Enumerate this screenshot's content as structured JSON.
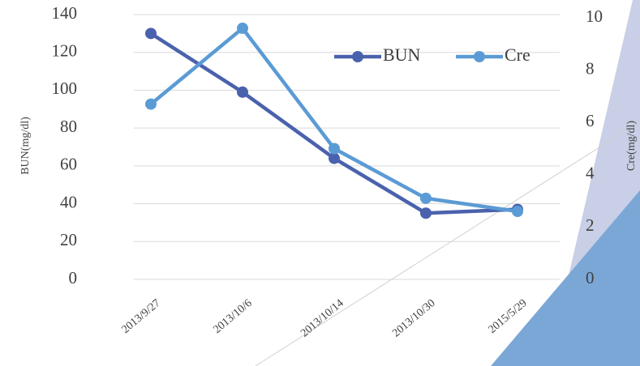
{
  "chart_data": {
    "type": "line",
    "categories": [
      "2013/9/27",
      "2013/10/6",
      "2013/10/14",
      "2013/10/30",
      "2015/5/29"
    ],
    "series": [
      {
        "name": "BUN",
        "color": "#4a62ad",
        "values": [
          130,
          99,
          64,
          35,
          37
        ]
      },
      {
        "name": "Cre",
        "color": "#5b9bd5",
        "values": [
          6.7,
          9.6,
          5.0,
          3.1,
          2.6
        ],
        "axis": "y2"
      }
    ],
    "ylabel": "BUN(mg/dl)",
    "y2label": "Cre(mg/dl)",
    "ylim": [
      0,
      140
    ],
    "yticks": [
      0,
      20,
      40,
      60,
      80,
      100,
      120,
      140
    ],
    "y2lim": [
      0,
      10
    ],
    "y2ticks": [
      0,
      2,
      4,
      6,
      8,
      10
    ],
    "grid": true,
    "legend": "top-right"
  }
}
